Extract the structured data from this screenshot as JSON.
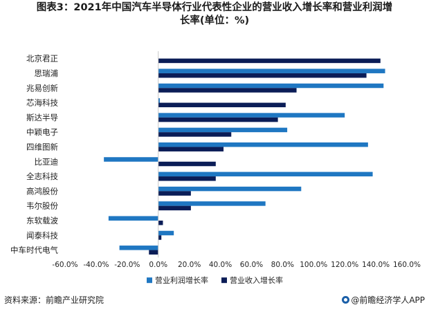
{
  "title_line1": "图表3：2021年中国汽车半导体行业代表性企业的营业收入增长率和营业利润增",
  "title_line2": "长率(单位：%)",
  "source": "资料来源：前瞻产业研究院",
  "brand": "@前瞻经济学人APP",
  "colors": {
    "profit": "#1f77c2",
    "revenue": "#0b1d57"
  },
  "chart_data": {
    "type": "bar",
    "orientation": "horizontal",
    "categories": [
      "北京君正",
      "思瑞浦",
      "兆易创新",
      "芯海科技",
      "斯达半导",
      "中颖电子",
      "四维图新",
      "比亚迪",
      "全志科技",
      "高鸿股份",
      "韦尔股份",
      "东软载波",
      "闻泰科技",
      "中车时代电气"
    ],
    "series": [
      {
        "name": "营业利润增长率",
        "values": [
          null,
          146,
          145,
          1,
          120,
          83,
          135,
          -35,
          138,
          92,
          69,
          -32,
          10,
          -25
        ]
      },
      {
        "name": "营业收入增长率",
        "values": [
          143,
          134,
          89,
          82,
          77,
          47,
          42,
          37,
          37,
          21,
          21,
          3,
          2,
          -6
        ]
      }
    ],
    "xlim": [
      -60,
      160
    ],
    "ticks": [
      -60,
      -40,
      -20,
      0,
      20,
      40,
      60,
      80,
      100,
      120,
      140,
      160
    ],
    "tick_labels": [
      "-60.0%",
      "-40.0%",
      "-20.0%",
      "0.0%",
      "20.0%",
      "40.0%",
      "60.0%",
      "80.0%",
      "100.0%",
      "120.0%",
      "140.0%",
      "160.0%"
    ],
    "legend_position": "bottom",
    "grid": false
  }
}
